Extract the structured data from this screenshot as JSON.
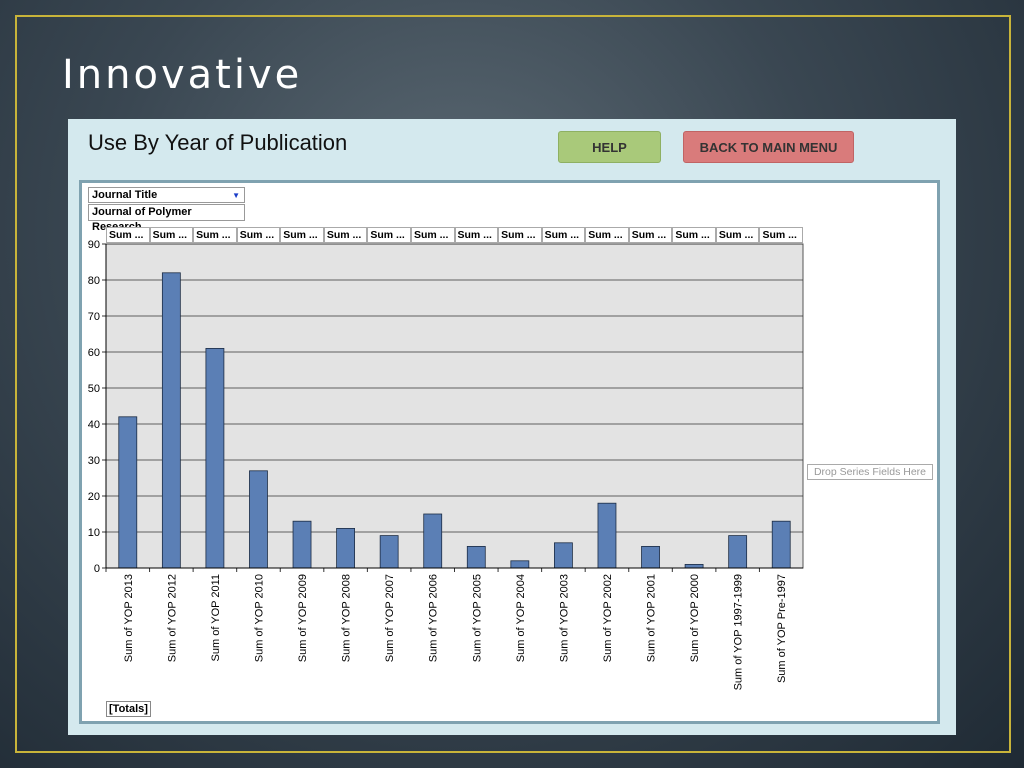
{
  "slide": {
    "title": "Innovative"
  },
  "form": {
    "heading": "Use By Year of Publication",
    "help_label": "HELP",
    "back_label": "BACK TO MAIN MENU"
  },
  "pivot": {
    "filter_field": "Journal Title",
    "filter_value": "Journal of Polymer Research",
    "column_header": "Sum ...",
    "drop_series": "Drop Series Fields Here",
    "totals": "[Totals]"
  },
  "chart_data": {
    "type": "bar",
    "categories": [
      "Sum of YOP 2013",
      "Sum of YOP 2012",
      "Sum of YOP 2011",
      "Sum of YOP 2010",
      "Sum of YOP 2009",
      "Sum of YOP 2008",
      "Sum of YOP 2007",
      "Sum of YOP 2006",
      "Sum of YOP 2005",
      "Sum of YOP 2004",
      "Sum of YOP 2003",
      "Sum of YOP 2002",
      "Sum of YOP 2001",
      "Sum of YOP 2000",
      "Sum of YOP 1997-1999",
      "Sum of YOP Pre-1997"
    ],
    "values": [
      42,
      82,
      61,
      27,
      13,
      11,
      9,
      15,
      6,
      2,
      7,
      18,
      6,
      1,
      9,
      13
    ],
    "yticks": [
      0,
      10,
      20,
      30,
      40,
      50,
      60,
      70,
      80,
      90
    ],
    "ylim": [
      0,
      90
    ],
    "grid": true,
    "colors": {
      "bar": "#5b7fb5",
      "plot_bg": "#e3e3e3"
    }
  }
}
